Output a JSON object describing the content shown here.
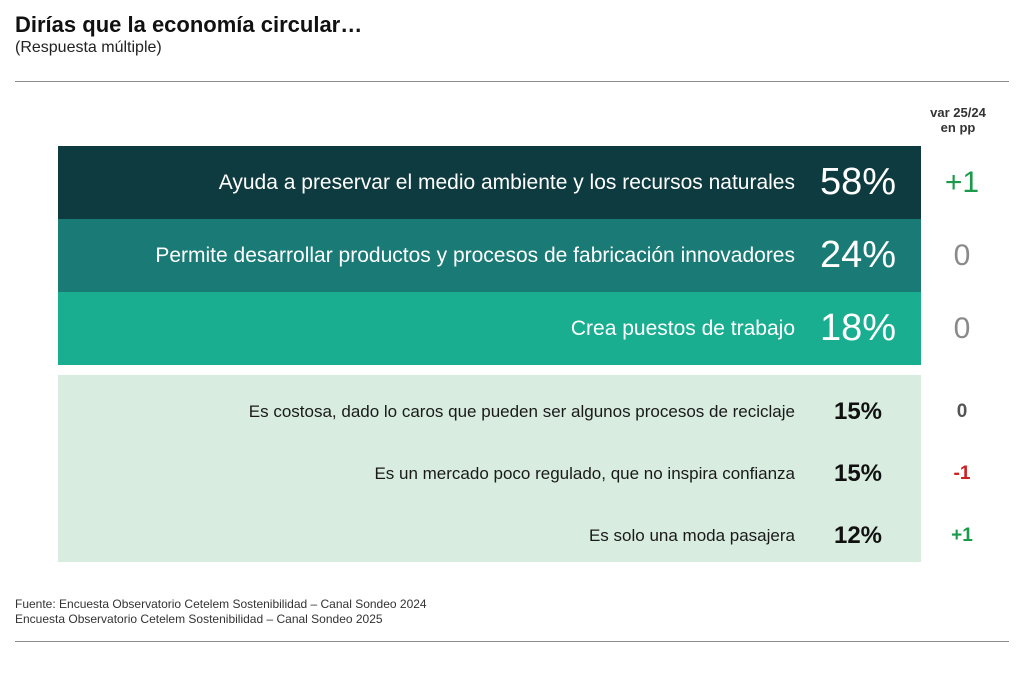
{
  "header": {
    "title": "Dirías que la economía circular…",
    "subtitle": "(Respuesta múltiple)"
  },
  "var_header": {
    "line1": "var 25/24",
    "line2": "en pp"
  },
  "colors": {
    "row1": "#0e3b3f",
    "row2": "#1a7a76",
    "row3": "#1aae90",
    "light_block": "#d8ece0",
    "var_positive": "#1a9a4a",
    "var_negative": "#d02020",
    "var_neutral_big": "#8a8a8a",
    "var_neutral_small": "#555555"
  },
  "chart_data": {
    "type": "table",
    "rows": [
      {
        "label": "Ayuda a preservar el medio ambiente y los recursos naturales",
        "value": "58%",
        "var": "+1",
        "var_sign": "positive"
      },
      {
        "label": "Permite desarrollar productos y procesos de fabricación innovadores",
        "value": "24%",
        "var": "0",
        "var_sign": "neutral"
      },
      {
        "label": "Crea puestos de trabajo",
        "value": "18%",
        "var": "0",
        "var_sign": "neutral"
      },
      {
        "label": "Es costosa, dado lo caros que pueden ser algunos procesos de reciclaje",
        "value": "15%",
        "var": "0",
        "var_sign": "neutral"
      },
      {
        "label": "Es un mercado poco regulado, que no inspira confianza",
        "value": "15%",
        "var": "-1",
        "var_sign": "negative"
      },
      {
        "label": "Es solo una moda pasajera",
        "value": "12%",
        "var": "+1",
        "var_sign": "positive"
      }
    ]
  },
  "source": {
    "line1": "Fuente: Encuesta Observatorio Cetelem Sostenibilidad – Canal Sondeo 2024",
    "line2": "Encuesta Observatorio Cetelem Sostenibilidad – Canal Sondeo 2025"
  }
}
